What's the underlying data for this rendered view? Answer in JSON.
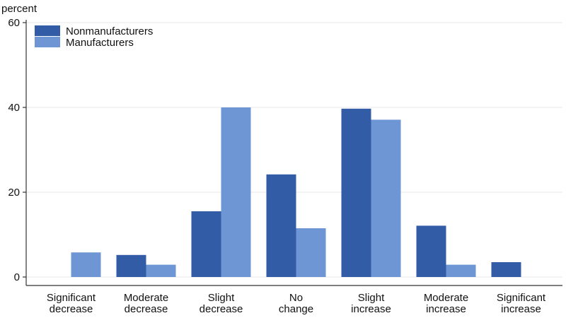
{
  "chart_data": {
    "type": "bar",
    "ylabel": "percent",
    "ylim": [
      0,
      60
    ],
    "yticks": [
      0,
      20,
      40,
      60
    ],
    "grid": true,
    "legend_position": "top-left",
    "categories": [
      [
        "Significant",
        "decrease"
      ],
      [
        "Moderate",
        "decrease"
      ],
      [
        "Slight",
        "decrease"
      ],
      [
        "No",
        "change"
      ],
      [
        "Slight",
        "increase"
      ],
      [
        "Moderate",
        "increase"
      ],
      [
        "Significant",
        "increase"
      ]
    ],
    "series": [
      {
        "name": "Nonmanufacturers",
        "color": "#335ca6",
        "values": [
          0,
          5.2,
          15.5,
          24.2,
          39.7,
          12.1,
          3.5
        ]
      },
      {
        "name": "Manufacturers",
        "color": "#6e96d4",
        "values": [
          5.8,
          2.9,
          40.0,
          11.5,
          37.1,
          2.9,
          0
        ]
      }
    ]
  }
}
